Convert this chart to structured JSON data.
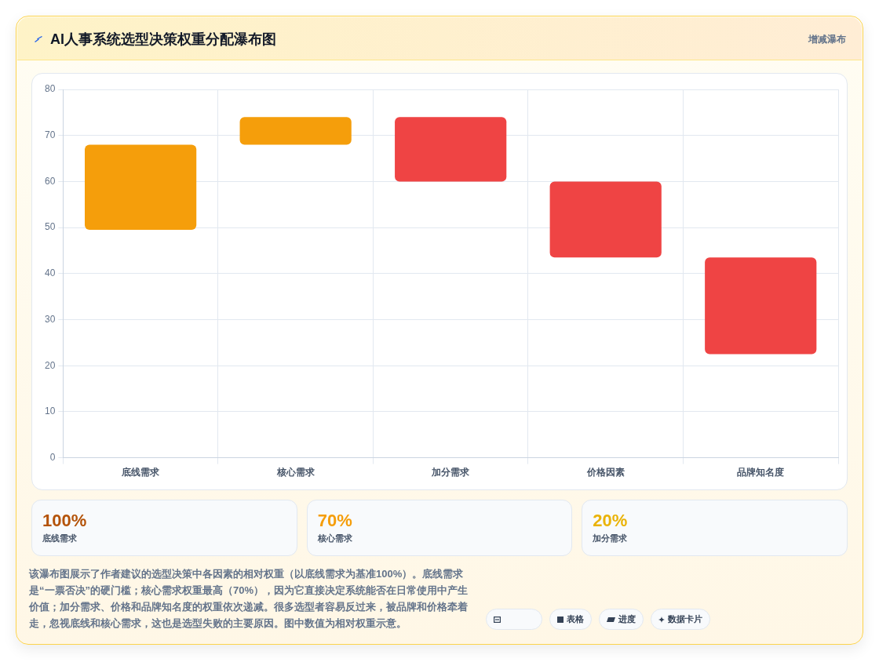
{
  "chart_data": [
    {
      "type": "bar",
      "title": "AI人事系统选型决策权重分配瀑布图",
      "categories": [
        "底线需求",
        "核心需求",
        "加分需求",
        "价格因素",
        "品牌知名度"
      ],
      "values": [
        18.5,
        6,
        -14,
        -16.5,
        -21
      ],
      "base": [
        49.5,
        68,
        74,
        60,
        43.5
      ],
      "colors": [
        "#f59e0b",
        "#f59e0b",
        "#ef4444",
        "#ef4444",
        "#ef4444"
      ],
      "ylim": [
        0,
        80
      ],
      "yticks": [
        0,
        10,
        20,
        30,
        40,
        50,
        60,
        70,
        80
      ],
      "grid": true,
      "legend": false,
      "annotations": [
        "增减瀑布",
        "该瀑布图展示了作者建议的选型决策中各因素的相对权重（以底线需求为基准100%）。底线需求是“一票否决”的硬门槛；核心需求权重最高（70%），因为它直接决定系统能否在日常使用中产生价值；加分需求、价格和品牌知名度的权重依次递减。很多选型者容易反过来，被品牌和价格牵着走，忽视底线和核心需求，这也是选型失败的主要原因。图中数值为相对权重示意。",
        "表格",
        "进度",
        "数据卡片"
      ]
    },
    {
      "type": "other",
      "categories": [
        "底线需求",
        "核心需求",
        "加分需求"
      ],
      "value_labels": [
        "100%",
        "70%",
        "20%"
      ]
    }
  ]
}
